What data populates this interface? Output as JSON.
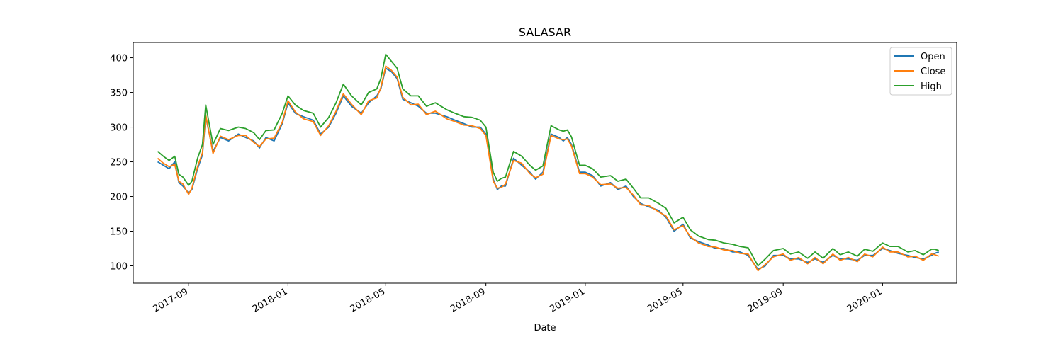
{
  "chart_data": {
    "type": "line",
    "title": "SALASAR",
    "xlabel": "Date",
    "ylabel": "",
    "x_ticks": [
      "2017-09",
      "2018-01",
      "2018-05",
      "2018-09",
      "2019-01",
      "2019-05",
      "2019-09",
      "2020-01"
    ],
    "y_ticks": [
      100,
      150,
      200,
      250,
      300,
      350,
      400
    ],
    "xlim": [
      "2017-06-25",
      "2020-04-01"
    ],
    "ylim": [
      75,
      422
    ],
    "grid": false,
    "legend_position": "top-right",
    "x": [
      "2017-07-25",
      "2017-08-01",
      "2017-08-08",
      "2017-08-15",
      "2017-08-20",
      "2017-08-25",
      "2017-09-01",
      "2017-09-05",
      "2017-09-12",
      "2017-09-18",
      "2017-09-22",
      "2017-10-01",
      "2017-10-10",
      "2017-10-20",
      "2017-11-01",
      "2017-11-10",
      "2017-11-20",
      "2017-11-27",
      "2017-12-05",
      "2017-12-15",
      "2017-12-25",
      "2018-01-01",
      "2018-01-10",
      "2018-01-20",
      "2018-02-01",
      "2018-02-10",
      "2018-02-20",
      "2018-03-01",
      "2018-03-10",
      "2018-03-20",
      "2018-04-01",
      "2018-04-10",
      "2018-04-20",
      "2018-04-25",
      "2018-05-01",
      "2018-05-08",
      "2018-05-15",
      "2018-05-22",
      "2018-06-01",
      "2018-06-10",
      "2018-06-20",
      "2018-07-01",
      "2018-07-15",
      "2018-07-25",
      "2018-08-05",
      "2018-08-15",
      "2018-08-25",
      "2018-09-01",
      "2018-09-10",
      "2018-09-15",
      "2018-09-20",
      "2018-09-25",
      "2018-10-05",
      "2018-10-15",
      "2018-10-25",
      "2018-11-01",
      "2018-11-10",
      "2018-11-20",
      "2018-11-30",
      "2018-12-05",
      "2018-12-10",
      "2018-12-15",
      "2018-12-20",
      "2018-12-25",
      "2019-01-01",
      "2019-01-10",
      "2019-01-20",
      "2019-02-01",
      "2019-02-10",
      "2019-02-20",
      "2019-03-01",
      "2019-03-10",
      "2019-03-20",
      "2019-04-01",
      "2019-04-10",
      "2019-04-20",
      "2019-05-01",
      "2019-05-10",
      "2019-05-20",
      "2019-06-01",
      "2019-06-10",
      "2019-06-20",
      "2019-07-01",
      "2019-07-10",
      "2019-07-20",
      "2019-08-01",
      "2019-08-10",
      "2019-08-20",
      "2019-09-01",
      "2019-09-10",
      "2019-09-20",
      "2019-10-01",
      "2019-10-10",
      "2019-10-20",
      "2019-11-01",
      "2019-11-10",
      "2019-11-20",
      "2019-12-01",
      "2019-12-10",
      "2019-12-20",
      "2020-01-01",
      "2020-01-10",
      "2020-01-20",
      "2020-02-01",
      "2020-02-10",
      "2020-02-20",
      "2020-03-01",
      "2020-03-05",
      "2020-03-10"
    ],
    "series": [
      {
        "name": "Open",
        "color": "#1f77b4",
        "values": [
          250,
          245,
          240,
          250,
          220,
          215,
          205,
          210,
          240,
          260,
          315,
          265,
          285,
          280,
          290,
          285,
          280,
          270,
          285,
          280,
          305,
          335,
          320,
          315,
          310,
          290,
          300,
          320,
          345,
          330,
          320,
          335,
          345,
          355,
          385,
          380,
          370,
          340,
          335,
          330,
          320,
          320,
          315,
          310,
          305,
          300,
          300,
          290,
          225,
          210,
          215,
          215,
          255,
          245,
          235,
          225,
          235,
          290,
          285,
          280,
          285,
          275,
          255,
          235,
          235,
          230,
          215,
          220,
          210,
          215,
          200,
          190,
          185,
          180,
          170,
          150,
          160,
          140,
          135,
          130,
          125,
          125,
          120,
          120,
          115,
          95,
          100,
          115,
          115,
          110,
          110,
          105,
          110,
          105,
          115,
          110,
          110,
          108,
          115,
          115,
          125,
          122,
          118,
          115,
          112,
          110,
          115,
          118,
          120
        ]
      },
      {
        "name": "Close",
        "color": "#ff7f0e",
        "values": [
          255,
          248,
          243,
          246,
          222,
          218,
          203,
          212,
          243,
          263,
          318,
          262,
          287,
          282,
          288,
          288,
          278,
          272,
          283,
          284,
          307,
          338,
          322,
          312,
          308,
          288,
          302,
          323,
          348,
          333,
          318,
          338,
          342,
          357,
          388,
          382,
          372,
          343,
          332,
          333,
          318,
          323,
          312,
          308,
          303,
          302,
          298,
          288,
          222,
          212,
          213,
          218,
          252,
          248,
          233,
          227,
          232,
          288,
          283,
          282,
          283,
          273,
          253,
          233,
          233,
          228,
          217,
          218,
          212,
          213,
          202,
          188,
          187,
          178,
          172,
          152,
          158,
          142,
          133,
          128,
          127,
          123,
          122,
          118,
          117,
          93,
          102,
          113,
          117,
          108,
          112,
          103,
          112,
          103,
          117,
          108,
          112,
          106,
          117,
          113,
          127,
          120,
          120,
          113,
          114,
          108,
          117,
          116,
          114
        ]
      },
      {
        "name": "High",
        "color": "#2ca02c",
        "values": [
          265,
          258,
          252,
          258,
          232,
          228,
          216,
          222,
          255,
          275,
          332,
          275,
          298,
          295,
          300,
          298,
          292,
          282,
          295,
          296,
          320,
          345,
          332,
          324,
          320,
          300,
          314,
          335,
          362,
          345,
          332,
          350,
          355,
          370,
          405,
          395,
          385,
          355,
          345,
          345,
          330,
          335,
          325,
          320,
          315,
          314,
          310,
          300,
          235,
          222,
          226,
          228,
          265,
          258,
          245,
          238,
          244,
          302,
          296,
          294,
          296,
          286,
          265,
          245,
          245,
          240,
          228,
          230,
          222,
          225,
          212,
          198,
          198,
          190,
          183,
          162,
          170,
          152,
          143,
          138,
          137,
          133,
          131,
          128,
          126,
          100,
          110,
          122,
          125,
          117,
          120,
          111,
          120,
          111,
          125,
          116,
          120,
          114,
          124,
          121,
          133,
          128,
          128,
          120,
          122,
          116,
          124,
          124,
          122
        ]
      }
    ]
  }
}
